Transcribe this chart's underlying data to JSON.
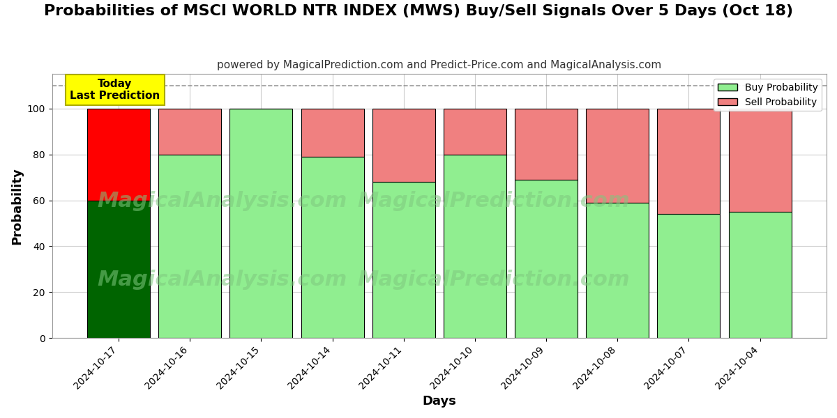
{
  "title": "Probabilities of MSCI WORLD NTR INDEX (MWS) Buy/Sell Signals Over 5 Days (Oct 18)",
  "subtitle": "powered by MagicalPrediction.com and Predict-Price.com and MagicalAnalysis.com",
  "xlabel": "Days",
  "ylabel": "Probability",
  "categories": [
    "2024-10-17",
    "2024-10-16",
    "2024-10-15",
    "2024-10-14",
    "2024-10-11",
    "2024-10-10",
    "2024-10-09",
    "2024-10-08",
    "2024-10-07",
    "2024-10-04"
  ],
  "buy_values": [
    60,
    80,
    100,
    79,
    68,
    80,
    69,
    59,
    54,
    55
  ],
  "sell_values": [
    40,
    20,
    0,
    21,
    32,
    20,
    31,
    41,
    46,
    45
  ],
  "today_buy_color": "#006400",
  "today_sell_color": "#ff0000",
  "buy_color": "#90EE90",
  "sell_color": "#F08080",
  "today_annotation_bg": "#ffff00",
  "today_annotation_text": "Today\nLast Prediction",
  "dashed_line_y": 110,
  "ylim": [
    0,
    115
  ],
  "yticks": [
    0,
    20,
    40,
    60,
    80,
    100
  ],
  "grid_color": "#cccccc",
  "legend_buy_label": "Buy Probability",
  "legend_sell_label": "Sell Probability",
  "bar_edge_color": "#000000",
  "background_color": "#ffffff",
  "title_fontsize": 16,
  "subtitle_fontsize": 11,
  "axis_label_fontsize": 13,
  "tick_fontsize": 10,
  "watermark_color": "#7EC87E",
  "watermark_alpha": 0.55,
  "watermark_fontsize": 22,
  "bar_width": 0.88
}
